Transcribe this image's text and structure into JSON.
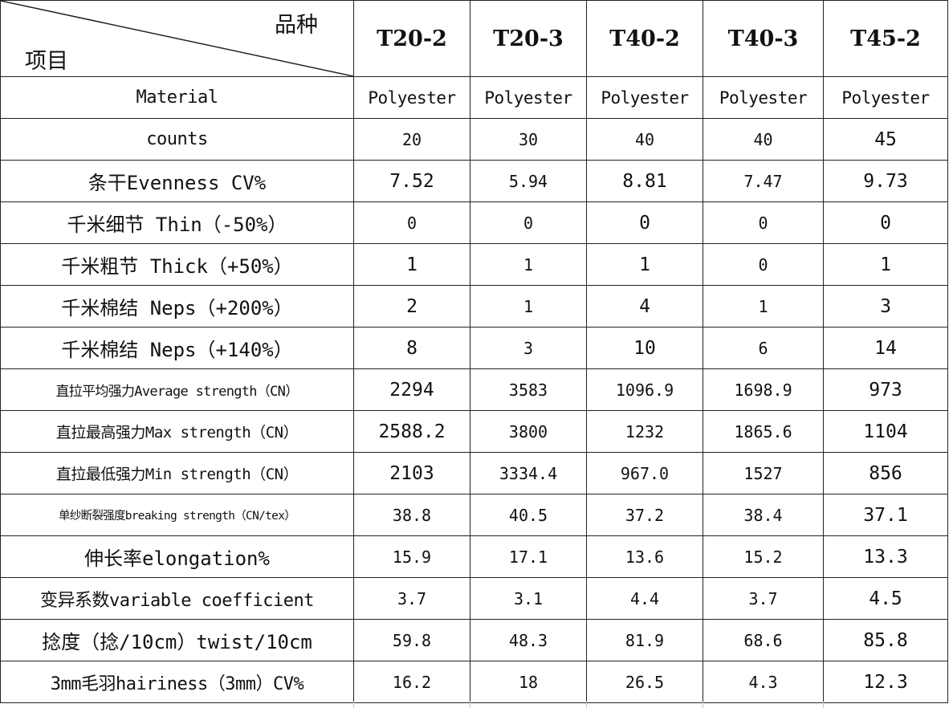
{
  "header": {
    "variety_label": "品种",
    "item_label": "项目",
    "columns": [
      "T20-2",
      "T20-3",
      "T40-2",
      "T40-3",
      "T45-2"
    ]
  },
  "rows": [
    {
      "label": "Material",
      "values": [
        "Polyester",
        "Polyester",
        "Polyester",
        "Polyester",
        "Polyester"
      ]
    },
    {
      "label": "counts",
      "values": [
        "20",
        "30",
        "40",
        "40",
        "45"
      ]
    },
    {
      "label": "条干Evenness CV%",
      "values": [
        "7.52",
        "5.94",
        "8.81",
        "7.47",
        "9.73"
      ]
    },
    {
      "label": "千米细节 Thin（-50%）",
      "values": [
        "0",
        "0",
        "0",
        "0",
        "0"
      ]
    },
    {
      "label": "千米粗节 Thick（+50%）",
      "values": [
        "1",
        "1",
        "1",
        "0",
        "1"
      ]
    },
    {
      "label": "千米棉结 Neps（+200%）",
      "values": [
        "2",
        "1",
        "4",
        "1",
        "3"
      ]
    },
    {
      "label": "千米棉结 Neps（+140%）",
      "values": [
        "8",
        "3",
        "10",
        "6",
        "14"
      ]
    },
    {
      "label": "直拉平均强力Average strength（CN）",
      "values": [
        "2294",
        "3583",
        "1096.9",
        "1698.9",
        "973"
      ]
    },
    {
      "label": "直拉最高强力Max strength（CN）",
      "values": [
        "2588.2",
        "3800",
        "1232",
        "1865.6",
        "1104"
      ]
    },
    {
      "label": "直拉最低强力Min strength（CN）",
      "values": [
        "2103",
        "3334.4",
        "967.0",
        "1527",
        "856"
      ]
    },
    {
      "label": "单纱断裂强度breaking strength（CN/tex）",
      "values": [
        "38.8",
        "40.5",
        "37.2",
        "38.4",
        "37.1"
      ]
    },
    {
      "label": "伸长率elongation%",
      "values": [
        "15.9",
        "17.1",
        "13.6",
        "15.2",
        "13.3"
      ]
    },
    {
      "label": "变异系数variable coefficient",
      "values": [
        "3.7",
        "3.1",
        "4.4",
        "3.7",
        "4.5"
      ]
    },
    {
      "label": "捻度（捻/10cm）twist/10cm",
      "values": [
        "59.8",
        "48.3",
        "81.9",
        "68.6",
        "85.8"
      ]
    },
    {
      "label": "3mm毛羽hairiness（3mm）CV%",
      "values": [
        "16.2",
        "18",
        "26.5",
        "4.3",
        "12.3"
      ]
    }
  ]
}
